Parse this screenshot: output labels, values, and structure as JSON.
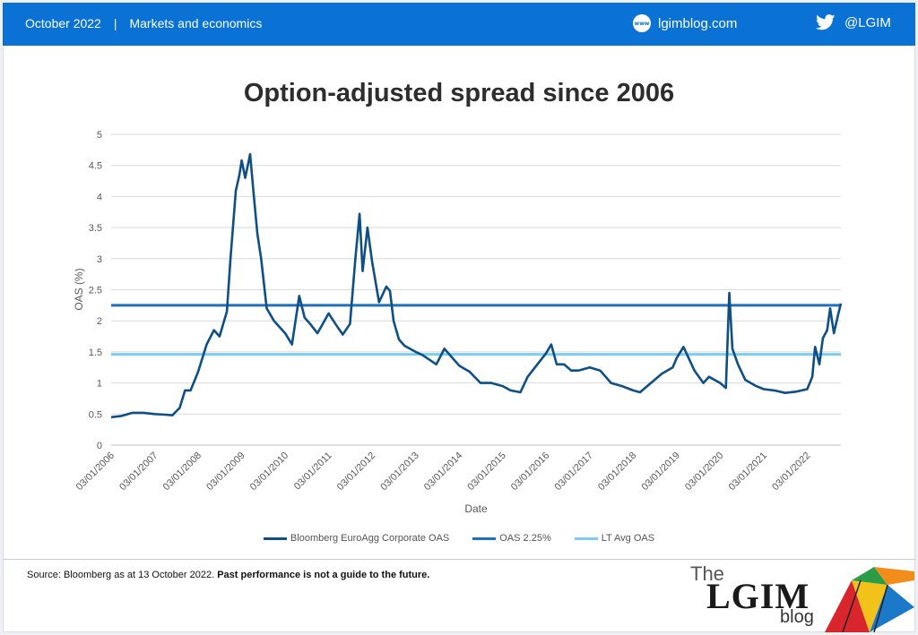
{
  "header": {
    "date": "October 2022",
    "separator": "|",
    "category": "Markets and economics",
    "site": "lgimblog.com",
    "site_icon": "www",
    "twitter": "@LGIM"
  },
  "colors": {
    "header_bg": "#0a72d4",
    "series_main": "#0e4f86",
    "series_oas225": "#1f6fc0",
    "series_ltavg": "#7ecbf2"
  },
  "chart_data": {
    "type": "line",
    "title": "Option-adjusted spread since 2006",
    "xlabel": "Date",
    "ylabel": "OAS (%)",
    "ylim": [
      0,
      5
    ],
    "yticks": [
      "0",
      "0.5",
      "1",
      "1.5",
      "2",
      "2.5",
      "3",
      "3.5",
      "4",
      "4.5",
      "5"
    ],
    "xticks": [
      "03/01/2006",
      "03/01/2007",
      "03/01/2008",
      "03/01/2009",
      "03/01/2010",
      "03/01/2011",
      "03/01/2012",
      "03/01/2013",
      "03/01/2014",
      "03/01/2015",
      "03/01/2016",
      "03/01/2017",
      "03/01/2018",
      "03/01/2019",
      "03/01/2020",
      "03/01/2021",
      "03/01/2022"
    ],
    "grid": true,
    "legend_position": "bottom",
    "series": [
      {
        "name": "Bloomberg EuroAgg Corporate OAS",
        "x": [
          "2006-01-03",
          "2006-04-01",
          "2006-07-01",
          "2006-10-01",
          "2007-01-03",
          "2007-04-01",
          "2007-06-01",
          "2007-08-01",
          "2007-09-15",
          "2007-11-01",
          "2008-01-03",
          "2008-03-15",
          "2008-05-15",
          "2008-07-01",
          "2008-09-01",
          "2008-10-01",
          "2008-11-15",
          "2008-12-15",
          "2009-01-03",
          "2009-02-01",
          "2009-03-15",
          "2009-04-15",
          "2009-05-15",
          "2009-06-15",
          "2009-08-01",
          "2009-10-01",
          "2010-01-03",
          "2010-03-01",
          "2010-05-01",
          "2010-06-15",
          "2010-08-01",
          "2010-10-01",
          "2011-01-03",
          "2011-03-01",
          "2011-05-01",
          "2011-07-01",
          "2011-08-15",
          "2011-09-20",
          "2011-10-15",
          "2011-11-25",
          "2011-12-20",
          "2012-01-03",
          "2012-03-01",
          "2012-05-01",
          "2012-06-01",
          "2012-07-01",
          "2012-08-15",
          "2012-10-01",
          "2013-01-03",
          "2013-03-01",
          "2013-06-25",
          "2013-09-01",
          "2014-01-03",
          "2014-04-01",
          "2014-07-01",
          "2014-10-01",
          "2015-01-03",
          "2015-03-10",
          "2015-06-01",
          "2015-08-01",
          "2015-10-01",
          "2016-01-03",
          "2016-02-15",
          "2016-04-01",
          "2016-06-01",
          "2016-08-01",
          "2016-10-01",
          "2017-01-03",
          "2017-04-01",
          "2017-07-01",
          "2017-10-01",
          "2018-01-03",
          "2018-03-01",
          "2018-06-01",
          "2018-09-01",
          "2018-12-01",
          "2019-01-03",
          "2019-03-01",
          "2019-06-01",
          "2019-08-15",
          "2019-10-01",
          "2020-01-03",
          "2020-02-20",
          "2020-03-20",
          "2020-04-15",
          "2020-06-01",
          "2020-08-01",
          "2020-11-01",
          "2021-01-03",
          "2021-04-01",
          "2021-07-01",
          "2021-10-01",
          "2022-01-03",
          "2022-02-15",
          "2022-03-10",
          "2022-04-15",
          "2022-05-15",
          "2022-06-20",
          "2022-07-15",
          "2022-08-15",
          "2022-09-20",
          "2022-10-13"
        ],
        "values": [
          0.45,
          0.47,
          0.52,
          0.52,
          0.5,
          0.49,
          0.48,
          0.6,
          0.88,
          0.88,
          1.18,
          1.62,
          1.85,
          1.75,
          2.15,
          3.0,
          4.1,
          4.35,
          4.58,
          4.3,
          4.68,
          4.0,
          3.4,
          3.0,
          2.2,
          2.0,
          1.8,
          1.62,
          2.4,
          2.05,
          1.95,
          1.8,
          2.12,
          1.95,
          1.78,
          1.95,
          3.0,
          3.72,
          2.8,
          3.5,
          3.15,
          2.95,
          2.3,
          2.55,
          2.48,
          2.0,
          1.7,
          1.6,
          1.5,
          1.45,
          1.3,
          1.55,
          1.28,
          1.18,
          1.0,
          1.0,
          0.95,
          0.88,
          0.85,
          1.1,
          1.25,
          1.48,
          1.62,
          1.3,
          1.3,
          1.2,
          1.2,
          1.25,
          1.2,
          1.0,
          0.95,
          0.88,
          0.85,
          1.0,
          1.15,
          1.25,
          1.4,
          1.58,
          1.2,
          1.0,
          1.1,
          1.0,
          0.92,
          2.45,
          1.55,
          1.3,
          1.05,
          0.95,
          0.9,
          0.88,
          0.84,
          0.86,
          0.9,
          1.1,
          1.58,
          1.3,
          1.72,
          1.85,
          2.2,
          1.8,
          2.1,
          2.28
        ]
      },
      {
        "name": "OAS 2.25%",
        "value": 2.25
      },
      {
        "name": "LT Avg OAS",
        "value": 1.46
      }
    ]
  },
  "legend": {
    "main": "Bloomberg EuroAgg Corporate OAS",
    "oas225": "OAS 2.25%",
    "ltavg": "LT Avg OAS"
  },
  "source": {
    "text": "Source: Bloomberg as at 13 October 2022. ",
    "bold": "Past performance is not a guide  to the future."
  },
  "logo": {
    "the": "The",
    "brand": "LGIM",
    "blog": "blog"
  }
}
